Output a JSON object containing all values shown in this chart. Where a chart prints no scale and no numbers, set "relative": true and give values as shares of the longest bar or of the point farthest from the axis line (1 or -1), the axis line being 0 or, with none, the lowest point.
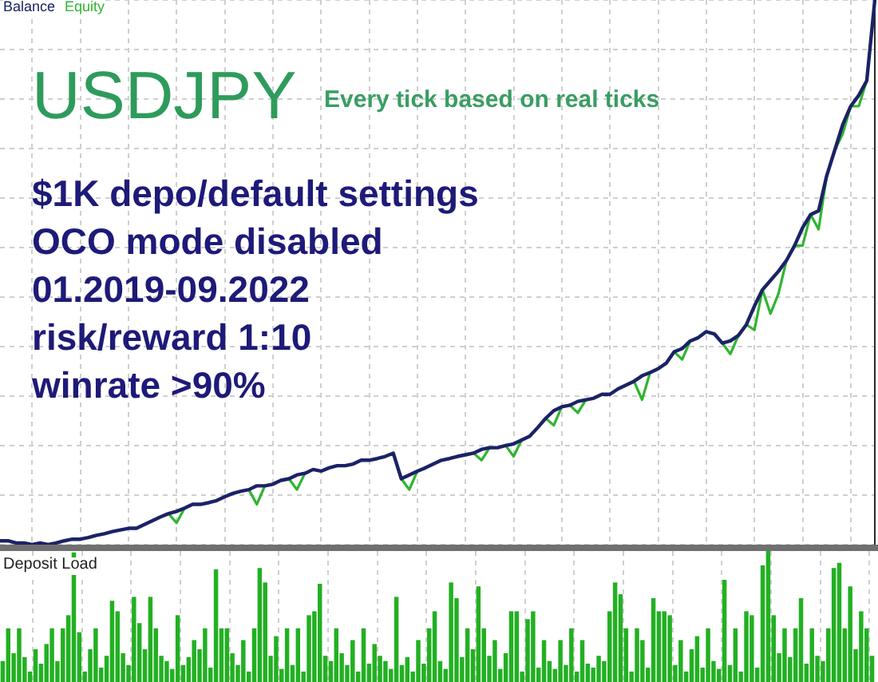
{
  "chart_data": [
    {
      "type": "line",
      "title": "USDJPY",
      "subtitle": "Every tick based on real ticks",
      "annotations": [
        "$1K depo/default settings",
        "OCO mode disabled",
        "01.2019-09.2022",
        "risk/reward 1:10",
        "winrate >90%"
      ],
      "categories": [
        null,
        null,
        null,
        null,
        null,
        null,
        null,
        null,
        null,
        null,
        null,
        null,
        null,
        null,
        null,
        null,
        null,
        null,
        null,
        null,
        null,
        null,
        null,
        null,
        null,
        null,
        null,
        null,
        null,
        null,
        null,
        null,
        null,
        null,
        null,
        null,
        null,
        null,
        null,
        null,
        null,
        null,
        null,
        null,
        null,
        null,
        null,
        null,
        null,
        null,
        null,
        null,
        null,
        null,
        null,
        null,
        null,
        null,
        null,
        null,
        null,
        null,
        null,
        null,
        null,
        null,
        null,
        null,
        null,
        null,
        null,
        null,
        null,
        null,
        null,
        null,
        null,
        null,
        null,
        null,
        null,
        null,
        null,
        null,
        null,
        null,
        null,
        null,
        null,
        null,
        null,
        null,
        null,
        null,
        null,
        null,
        null,
        null,
        null,
        null,
        null,
        null,
        null,
        null,
        null,
        null,
        null,
        null,
        null,
        null
      ],
      "series": [
        {
          "name": "Balance",
          "color": "#1b2266",
          "values": [
            0.007,
            0.007,
            0.003,
            0.003,
            0,
            0.003,
            0,
            0.003,
            0.007,
            0.01,
            0.01,
            0.013,
            0.017,
            0.02,
            0.024,
            0.027,
            0.03,
            0.03,
            0.037,
            0.044,
            0.051,
            0.057,
            0.061,
            0.067,
            0.074,
            0.074,
            0.077,
            0.081,
            0.088,
            0.094,
            0.098,
            0.101,
            0.108,
            0.108,
            0.111,
            0.118,
            0.121,
            0.128,
            0.131,
            0.138,
            0.135,
            0.141,
            0.145,
            0.145,
            0.148,
            0.155,
            0.155,
            0.158,
            0.162,
            0.168,
            0.121,
            0.128,
            0.135,
            0.141,
            0.148,
            0.155,
            0.158,
            0.162,
            0.165,
            0.168,
            0.175,
            0.178,
            0.178,
            0.182,
            0.185,
            0.192,
            0.199,
            0.215,
            0.232,
            0.246,
            0.253,
            0.256,
            0.263,
            0.266,
            0.269,
            0.276,
            0.276,
            0.286,
            0.293,
            0.3,
            0.31,
            0.316,
            0.323,
            0.333,
            0.354,
            0.36,
            0.374,
            0.38,
            0.391,
            0.387,
            0.37,
            0.374,
            0.384,
            0.404,
            0.438,
            0.468,
            0.485,
            0.502,
            0.522,
            0.549,
            0.582,
            0.606,
            0.613,
            0.677,
            0.724,
            0.771,
            0.805,
            0.825,
            0.852,
            1
          ]
        },
        {
          "name": "Equity",
          "color": "#2fb52f",
          "values": [
            null,
            null,
            null,
            null,
            null,
            null,
            null,
            null,
            null,
            null,
            null,
            null,
            null,
            null,
            null,
            null,
            null,
            null,
            null,
            null,
            null,
            0.057,
            0.04,
            0.067,
            null,
            null,
            null,
            null,
            null,
            null,
            null,
            0.101,
            0.074,
            0.108,
            null,
            null,
            0.121,
            0.101,
            0.131,
            null,
            null,
            null,
            null,
            null,
            null,
            null,
            null,
            null,
            null,
            null,
            0.121,
            0.101,
            0.135,
            null,
            null,
            null,
            null,
            null,
            null,
            0.168,
            0.155,
            0.178,
            null,
            0.182,
            0.162,
            0.192,
            null,
            null,
            0.232,
            0.219,
            0.253,
            0.256,
            0.242,
            0.266,
            null,
            null,
            null,
            null,
            null,
            0.3,
            0.266,
            0.316,
            null,
            null,
            0.354,
            0.34,
            0.374,
            null,
            null,
            null,
            0.37,
            0.35,
            0.384,
            0.404,
            0.394,
            0.468,
            0.424,
            0.461,
            0.522,
            0.549,
            0.549,
            0.606,
            0.579,
            0.677,
            0.724,
            0.754,
            0.805,
            0.805,
            0.852,
            null
          ]
        }
      ],
      "relative": true,
      "legend": "top left",
      "grid": true
    },
    {
      "type": "bar",
      "title": "Deposit Load",
      "categories": [
        null,
        null,
        null,
        null,
        null,
        null,
        null,
        null,
        null,
        null,
        null,
        null,
        null,
        null,
        null,
        null,
        null,
        null,
        null,
        null,
        null,
        null,
        null,
        null,
        null,
        null,
        null,
        null,
        null,
        null,
        null,
        null,
        null,
        null,
        null,
        null,
        null,
        null,
        null,
        null,
        null,
        null,
        null,
        null,
        null,
        null,
        null,
        null,
        null,
        null,
        null,
        null,
        null,
        null,
        null,
        null,
        null,
        null,
        null,
        null,
        null,
        null,
        null,
        null,
        null,
        null,
        null,
        null,
        null,
        null,
        null,
        null,
        null,
        null,
        null,
        null,
        null,
        null,
        null,
        null,
        null,
        null,
        null,
        null,
        null,
        null,
        null,
        null,
        null,
        null,
        null,
        null,
        null,
        null,
        null,
        null,
        null,
        null,
        null,
        null,
        null,
        null,
        null,
        null,
        null,
        null,
        null,
        null,
        null,
        null,
        null,
        null,
        null,
        null,
        null,
        null,
        null,
        null,
        null,
        null,
        null,
        null,
        null,
        null,
        null,
        null,
        null,
        null,
        null,
        null,
        null,
        null,
        null,
        null,
        null,
        null,
        null,
        null,
        null,
        null,
        null,
        null,
        null,
        null,
        null,
        null,
        null,
        null,
        null,
        null,
        null,
        null,
        null,
        null,
        null,
        null,
        null,
        null,
        null,
        null
      ],
      "values": [
        0.16,
        0.41,
        0.22,
        0.41,
        0.19,
        0.08,
        0.25,
        0.14,
        0.29,
        0.41,
        0.16,
        0.41,
        0.51,
        0.99,
        0.38,
        0.08,
        0.25,
        0.41,
        0.11,
        0.2,
        0.62,
        0.54,
        0.22,
        0.13,
        0.65,
        0.45,
        0.25,
        0.65,
        0.41,
        0.2,
        0.16,
        0.1,
        0.51,
        0.13,
        0.19,
        0.32,
        0.25,
        0.41,
        0.11,
        0.86,
        0.41,
        0.41,
        0.22,
        0.13,
        0.32,
        0.08,
        0.41,
        0.87,
        0.76,
        0.2,
        0.35,
        0.1,
        0.41,
        0.13,
        0.41,
        0.08,
        0.51,
        0.54,
        0.75,
        0.2,
        0.16,
        0.41,
        0.22,
        0.13,
        0.32,
        0.08,
        0.41,
        0.14,
        0.29,
        0.2,
        0.16,
        0.1,
        0.65,
        0.13,
        0.19,
        0.08,
        0.32,
        0.14,
        0.41,
        0.54,
        0.16,
        0.1,
        0.76,
        0.64,
        0.19,
        0.41,
        0.25,
        0.73,
        0.41,
        0.2,
        0.32,
        0.1,
        0.22,
        0.54,
        0.54,
        0.08,
        0.48,
        0.54,
        0.11,
        0.32,
        0.16,
        0.1,
        0.32,
        0.13,
        0.41,
        0.08,
        0.32,
        0.14,
        0.11,
        0.2,
        0.16,
        0.54,
        0.76,
        0.67,
        0.41,
        0.08,
        0.41,
        0.32,
        0.11,
        0.64,
        0.54,
        0.54,
        0.51,
        0.13,
        0.32,
        0.08,
        0.25,
        0.35,
        0.11,
        0.41,
        0.16,
        0.1,
        0.78,
        0.13,
        0.41,
        0.08,
        0.54,
        0.51,
        0.11,
        0.89,
        1,
        0.51,
        0.22,
        0.41,
        0.19,
        0.41,
        0.64,
        0.14,
        0.41,
        0.2,
        0.16,
        0.41,
        0.87,
        0.91,
        0.41,
        0.73,
        0.25,
        0.54,
        0.41,
        0.2
      ],
      "color": "#22b022",
      "relative": true,
      "grid": "x"
    }
  ]
}
